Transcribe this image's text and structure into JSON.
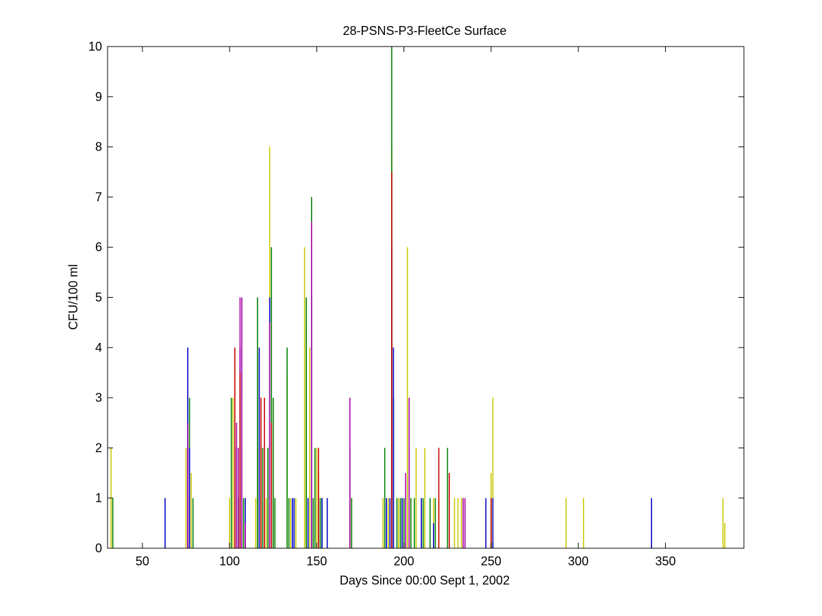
{
  "chart_data": {
    "type": "bar",
    "title": "28-PSNS-P3-FleetCe Surface",
    "xlabel": "Days Since 00:00 Sept 1, 2002",
    "ylabel": "CFU/100 ml",
    "xlim": [
      30,
      395
    ],
    "ylim": [
      0,
      10
    ],
    "xticks": [
      50,
      100,
      150,
      200,
      250,
      300,
      350
    ],
    "yticks": [
      0,
      1,
      2,
      3,
      4,
      5,
      6,
      7,
      8,
      9,
      10
    ],
    "grid": false,
    "colors": {
      "yellow": "#c8c800",
      "green": "#008000",
      "blue": "#0000c8",
      "purple": "#aa00aa",
      "red": "#c80000",
      "axis": "#000000"
    },
    "series": [
      {
        "color": "yellow",
        "values": [
          [
            32,
            2
          ],
          [
            33,
            1
          ],
          [
            75,
            2
          ],
          [
            77,
            1
          ],
          [
            78,
            1.5
          ],
          [
            100,
            1
          ],
          [
            102,
            3
          ],
          [
            103,
            3.5
          ],
          [
            105,
            1
          ],
          [
            106,
            3
          ],
          [
            115,
            1
          ],
          [
            116,
            2
          ],
          [
            118,
            2
          ],
          [
            121,
            1
          ],
          [
            123,
            8
          ],
          [
            125,
            3
          ],
          [
            133,
            3.5
          ],
          [
            135,
            1
          ],
          [
            138,
            1
          ],
          [
            143,
            6
          ],
          [
            144,
            4.5
          ],
          [
            146,
            4
          ],
          [
            150,
            2
          ],
          [
            151,
            1.5
          ],
          [
            169,
            2
          ],
          [
            170,
            1
          ],
          [
            188,
            1
          ],
          [
            191,
            1
          ],
          [
            193,
            8
          ],
          [
            197,
            1
          ],
          [
            202,
            6
          ],
          [
            203,
            1
          ],
          [
            207,
            2
          ],
          [
            212,
            2
          ],
          [
            217,
            1
          ],
          [
            220,
            1
          ],
          [
            229,
            1
          ],
          [
            231,
            1
          ],
          [
            233,
            1
          ],
          [
            234,
            1
          ],
          [
            250,
            1.5
          ],
          [
            251,
            3
          ],
          [
            293,
            1
          ],
          [
            303,
            1
          ],
          [
            383,
            1
          ],
          [
            384,
            0.5
          ]
        ]
      },
      {
        "color": "green",
        "values": [
          [
            33,
            1
          ],
          [
            77,
            3
          ],
          [
            79,
            1
          ],
          [
            101,
            3
          ],
          [
            104,
            2
          ],
          [
            105,
            1
          ],
          [
            106,
            3
          ],
          [
            108,
            1
          ],
          [
            116,
            5
          ],
          [
            119,
            2
          ],
          [
            122,
            2
          ],
          [
            123,
            3
          ],
          [
            124,
            6
          ],
          [
            125,
            3
          ],
          [
            126,
            1
          ],
          [
            133,
            4
          ],
          [
            134,
            1
          ],
          [
            144,
            5
          ],
          [
            145,
            1
          ],
          [
            147,
            7
          ],
          [
            148,
            1
          ],
          [
            149,
            2
          ],
          [
            152,
            1
          ],
          [
            153,
            1
          ],
          [
            169,
            2
          ],
          [
            170,
            1
          ],
          [
            189,
            2
          ],
          [
            193,
            10
          ],
          [
            194,
            3
          ],
          [
            196,
            1
          ],
          [
            198,
            1
          ],
          [
            200,
            1
          ],
          [
            201,
            1
          ],
          [
            204,
            1
          ],
          [
            206,
            1
          ],
          [
            211,
            1
          ],
          [
            215,
            1
          ],
          [
            218,
            1
          ],
          [
            225,
            2
          ],
          [
            251,
            0.1
          ]
        ]
      },
      {
        "color": "blue",
        "values": [
          [
            63,
            1
          ],
          [
            76,
            4
          ],
          [
            77,
            2
          ],
          [
            103,
            2
          ],
          [
            106,
            4
          ],
          [
            109,
            1
          ],
          [
            117,
            4
          ],
          [
            123,
            5
          ],
          [
            136,
            1
          ],
          [
            137,
            1
          ],
          [
            145,
            1
          ],
          [
            147,
            5
          ],
          [
            153,
            1
          ],
          [
            156,
            1
          ],
          [
            190,
            1
          ],
          [
            192,
            1
          ],
          [
            193,
            6
          ],
          [
            194,
            4
          ],
          [
            199,
            1
          ],
          [
            210,
            1
          ],
          [
            217,
            0.5
          ],
          [
            247,
            1
          ],
          [
            251,
            1
          ],
          [
            342,
            1
          ]
        ]
      },
      {
        "color": "purple",
        "values": [
          [
            76,
            2.5
          ],
          [
            104,
            2.5
          ],
          [
            105,
            2
          ],
          [
            106,
            5
          ],
          [
            107,
            5
          ],
          [
            109,
            0.5
          ],
          [
            123,
            4.5
          ],
          [
            147,
            6.5
          ],
          [
            169,
            3
          ],
          [
            193,
            2.5
          ],
          [
            201,
            1.5
          ],
          [
            203,
            3
          ],
          [
            234,
            1
          ],
          [
            235,
            1
          ]
        ]
      },
      {
        "color": "red",
        "values": [
          [
            103,
            4
          ],
          [
            106,
            3.5
          ],
          [
            118,
            3
          ],
          [
            120,
            3
          ],
          [
            124,
            2.5
          ],
          [
            151,
            2
          ],
          [
            193,
            7.5
          ],
          [
            220,
            2
          ],
          [
            226,
            1.5
          ],
          [
            250,
            1
          ]
        ]
      }
    ]
  }
}
